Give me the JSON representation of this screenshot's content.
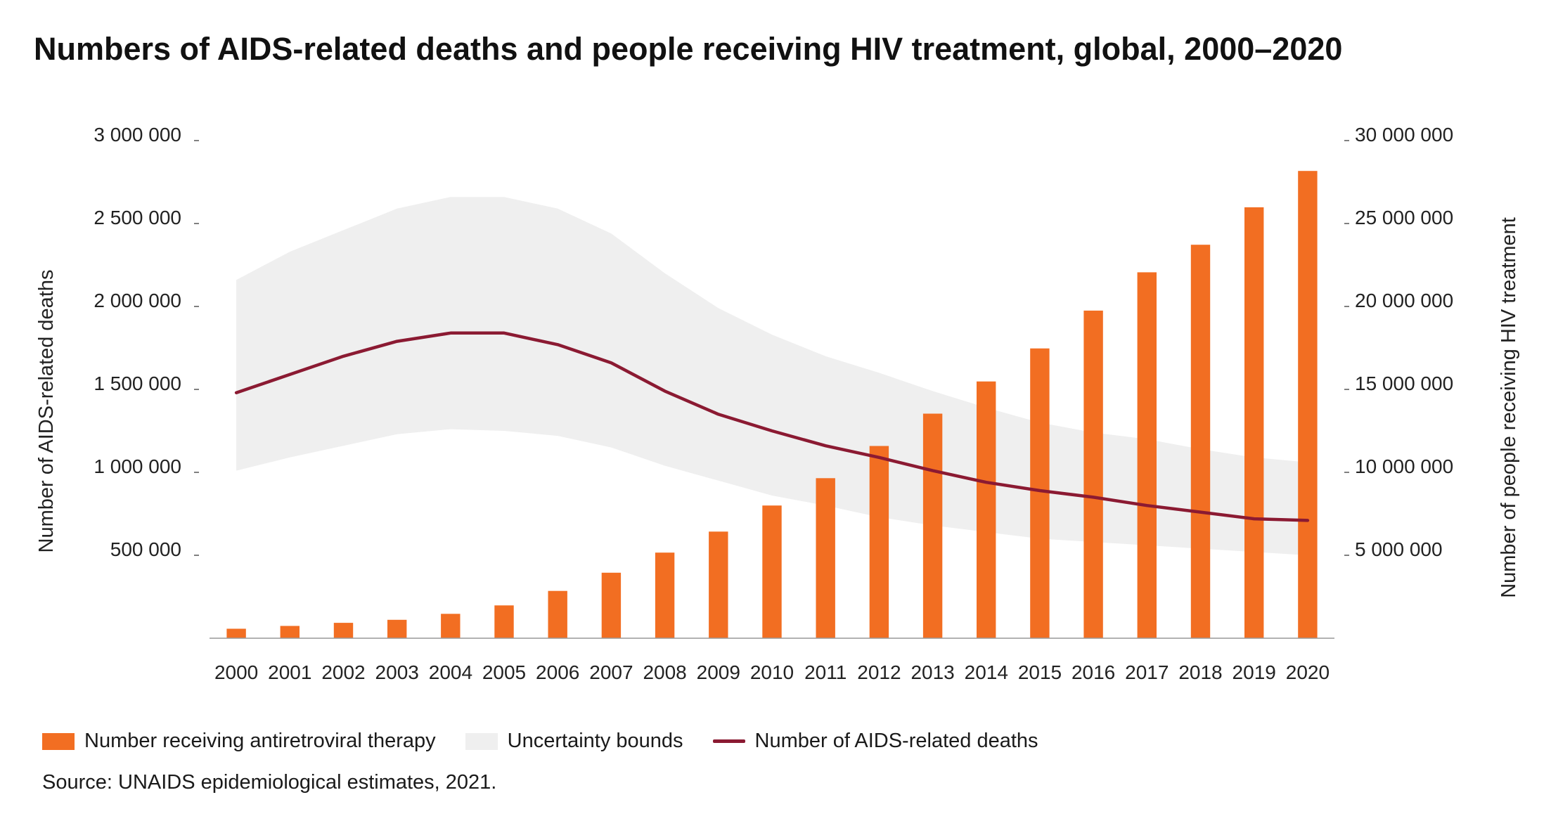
{
  "title": "Numbers of AIDS-related deaths and people receiving HIV treatment, global, 2000–2020",
  "source": "Source: UNAIDS epidemiological estimates, 2021.",
  "legend": {
    "bars": "Number receiving antiretroviral therapy",
    "band": "Uncertainty bounds",
    "line": "Number of AIDS-related deaths"
  },
  "colors": {
    "bars": "#f26e22",
    "band": "#efefef",
    "line": "#8b1a32",
    "axis": "#999999"
  },
  "chart_data": {
    "type": "bar",
    "title": "Numbers of AIDS-related deaths and people receiving HIV treatment, global, 2000–2020",
    "categories": [
      "2000",
      "2001",
      "2002",
      "2003",
      "2004",
      "2005",
      "2006",
      "2007",
      "2008",
      "2009",
      "2010",
      "2011",
      "2012",
      "2013",
      "2014",
      "2015",
      "2016",
      "2017",
      "2018",
      "2019",
      "2020"
    ],
    "left_axis": {
      "label": "Number of AIDS-related deaths",
      "ylim": [
        0,
        3000000
      ],
      "ticks": [
        {
          "value": 500000,
          "label": "500 000"
        },
        {
          "value": 1000000,
          "label": "1 000 000"
        },
        {
          "value": 1500000,
          "label": "1 500 000"
        },
        {
          "value": 2000000,
          "label": "2 000 000"
        },
        {
          "value": 2500000,
          "label": "2 500 000"
        },
        {
          "value": 3000000,
          "label": "3 000 000"
        }
      ]
    },
    "right_axis": {
      "label": "Number of people receiving HIV treatment",
      "ylim": [
        0,
        30000000
      ],
      "ticks": [
        {
          "value": 5000000,
          "label": "5 000 000"
        },
        {
          "value": 10000000,
          "label": "10 000 000"
        },
        {
          "value": 15000000,
          "label": "15 000 000"
        },
        {
          "value": 20000000,
          "label": "20 000 000"
        },
        {
          "value": 25000000,
          "label": "25 000 000"
        },
        {
          "value": 30000000,
          "label": "30 000 000"
        }
      ]
    },
    "series": [
      {
        "name": "Number receiving antiretroviral therapy",
        "type": "bar",
        "axis": "right",
        "values": [
          570000,
          740000,
          930000,
          1110000,
          1470000,
          1980000,
          2850000,
          3950000,
          5160000,
          6430000,
          8000000,
          9650000,
          11590000,
          13540000,
          15480000,
          17470000,
          19750000,
          22060000,
          23720000,
          25980000,
          28170000
        ]
      },
      {
        "name": "Number of AIDS-related deaths",
        "type": "line",
        "axis": "left",
        "values": [
          1480000,
          1590000,
          1700000,
          1790000,
          1840000,
          1840000,
          1770000,
          1660000,
          1490000,
          1350000,
          1250000,
          1160000,
          1090000,
          1010000,
          940000,
          890000,
          850000,
          800000,
          760000,
          720000,
          710000
        ]
      },
      {
        "name": "Uncertainty bounds",
        "type": "area",
        "axis": "left",
        "lower": [
          1010000,
          1090000,
          1160000,
          1230000,
          1260000,
          1250000,
          1220000,
          1150000,
          1040000,
          950000,
          860000,
          800000,
          730000,
          680000,
          640000,
          600000,
          580000,
          560000,
          540000,
          520000,
          500000
        ],
        "upper": [
          2160000,
          2330000,
          2460000,
          2590000,
          2660000,
          2660000,
          2590000,
          2440000,
          2200000,
          1990000,
          1830000,
          1700000,
          1600000,
          1490000,
          1390000,
          1300000,
          1240000,
          1200000,
          1140000,
          1090000,
          1060000
        ]
      }
    ]
  }
}
